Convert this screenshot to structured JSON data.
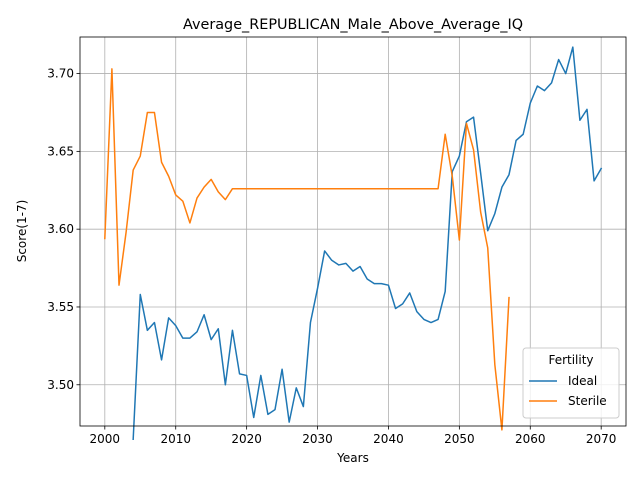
{
  "chart_data": {
    "type": "line",
    "title": "Average_REPUBLICAN_Male_Above_Average_IQ",
    "xlabel": "Years",
    "ylabel": "Score(1-7)",
    "xlim": [
      1996.5,
      2073.5
    ],
    "ylim": [
      3.4735,
      3.7235
    ],
    "x_ticks": [
      2000,
      2010,
      2020,
      2030,
      2040,
      2050,
      2060,
      2070
    ],
    "y_ticks": [
      3.5,
      3.55,
      3.6,
      3.65,
      3.7
    ],
    "y_tick_labels": [
      "3.50",
      "3.55",
      "3.60",
      "3.65",
      "3.70"
    ],
    "grid": true,
    "legend": {
      "title": "Fertility",
      "position": "lower-right"
    },
    "series": [
      {
        "name": "Ideal",
        "color": "#1f77b4",
        "x": [
          2004,
          2005,
          2006,
          2007,
          2008,
          2009,
          2010,
          2011,
          2012,
          2013,
          2014,
          2015,
          2016,
          2017,
          2018,
          2019,
          2020,
          2021,
          2022,
          2023,
          2024,
          2025,
          2026,
          2027,
          2028,
          2029,
          2030,
          2031,
          2032,
          2033,
          2034,
          2035,
          2036,
          2037,
          2038,
          2039,
          2040,
          2041,
          2042,
          2043,
          2044,
          2045,
          2046,
          2047,
          2048,
          2049,
          2050,
          2051,
          2052,
          2053,
          2054,
          2055,
          2056,
          2057,
          2058,
          2059,
          2060,
          2061,
          2062,
          2063,
          2064,
          2065,
          2066,
          2067,
          2068,
          2069,
          2070
        ],
        "values": [
          3.465,
          3.558,
          3.535,
          3.54,
          3.516,
          3.543,
          3.538,
          3.53,
          3.53,
          3.534,
          3.545,
          3.529,
          3.536,
          3.5,
          3.535,
          3.507,
          3.506,
          3.479,
          3.506,
          3.481,
          3.484,
          3.51,
          3.476,
          3.498,
          3.486,
          3.54,
          3.562,
          3.586,
          3.58,
          3.577,
          3.578,
          3.573,
          3.576,
          3.568,
          3.565,
          3.565,
          3.564,
          3.549,
          3.552,
          3.559,
          3.547,
          3.542,
          3.54,
          3.542,
          3.56,
          3.637,
          3.647,
          3.669,
          3.672,
          3.636,
          3.599,
          3.61,
          3.627,
          3.635,
          3.657,
          3.661,
          3.681,
          3.692,
          3.689,
          3.694,
          3.709,
          3.7,
          3.717,
          3.67,
          3.677,
          3.631,
          3.639
        ]
      },
      {
        "name": "Sterile",
        "color": "#ff7f0e",
        "x": [
          2000,
          2001,
          2002,
          2003,
          2004,
          2005,
          2006,
          2007,
          2008,
          2009,
          2010,
          2011,
          2012,
          2013,
          2014,
          2015,
          2016,
          2017,
          2018,
          2019,
          2020,
          2021,
          2022,
          2023,
          2024,
          2025,
          2026,
          2027,
          2028,
          2029,
          2030,
          2031,
          2032,
          2033,
          2034,
          2035,
          2036,
          2037,
          2038,
          2039,
          2040,
          2041,
          2042,
          2043,
          2044,
          2045,
          2046,
          2047,
          2048,
          2049,
          2050,
          2051,
          2052,
          2053,
          2054,
          2055,
          2056,
          2057
        ],
        "values": [
          3.594,
          3.703,
          3.564,
          3.598,
          3.638,
          3.647,
          3.675,
          3.675,
          3.643,
          3.634,
          3.622,
          3.618,
          3.604,
          3.62,
          3.627,
          3.632,
          3.624,
          3.619,
          3.626,
          3.626,
          3.626,
          3.626,
          3.626,
          3.626,
          3.626,
          3.626,
          3.626,
          3.626,
          3.626,
          3.626,
          3.626,
          3.626,
          3.626,
          3.626,
          3.626,
          3.626,
          3.626,
          3.626,
          3.626,
          3.626,
          3.626,
          3.626,
          3.626,
          3.626,
          3.626,
          3.626,
          3.626,
          3.626,
          3.661,
          3.634,
          3.593,
          3.668,
          3.651,
          3.611,
          3.588,
          3.513,
          3.471,
          3.556
        ]
      }
    ]
  }
}
